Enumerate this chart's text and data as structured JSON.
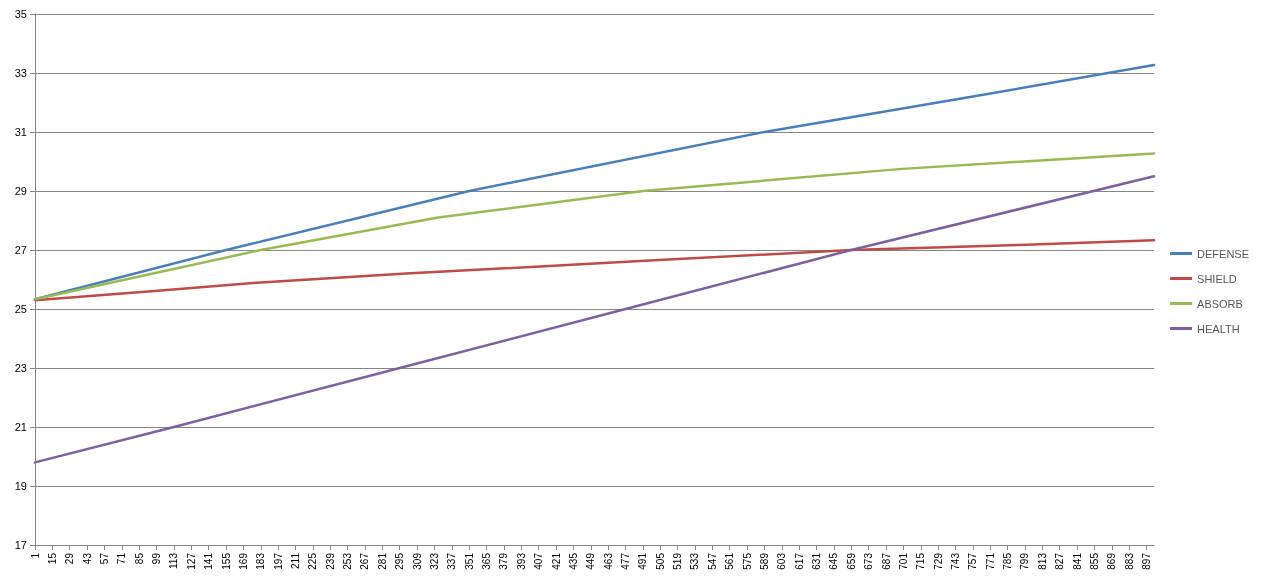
{
  "chart_data": {
    "type": "line",
    "xlim": [
      1,
      903
    ],
    "xticks": [
      1,
      15,
      29,
      43,
      57,
      71,
      85,
      99,
      113,
      127,
      141,
      155,
      169,
      183,
      197,
      211,
      225,
      239,
      253,
      267,
      281,
      295,
      309,
      323,
      337,
      351,
      365,
      379,
      393,
      407,
      421,
      435,
      449,
      463,
      477,
      491,
      505,
      519,
      533,
      547,
      561,
      575,
      589,
      603,
      617,
      631,
      645,
      659,
      673,
      687,
      701,
      715,
      729,
      743,
      757,
      771,
      785,
      799,
      813,
      827,
      841,
      855,
      869,
      883,
      897
    ],
    "ylim": [
      17,
      35
    ],
    "yticks": [
      17,
      19,
      21,
      23,
      25,
      27,
      29,
      31,
      33,
      35
    ],
    "grid": "y",
    "legend": "right",
    "marker": "none",
    "line_style": "solid",
    "series": [
      {
        "name": "DEFENSE",
        "color": "#4a7ebb",
        "x": [
          1,
          155,
          351,
          589,
          750,
          903
        ],
        "values": [
          25.33,
          27.0,
          29.0,
          31.0,
          32.15,
          33.27
        ]
      },
      {
        "name": "SHIELD",
        "color": "#be4b48",
        "x": [
          1,
          100,
          183,
          300,
          500,
          659,
          800,
          903
        ],
        "values": [
          25.3,
          25.62,
          25.9,
          26.2,
          26.65,
          27.0,
          27.18,
          27.33
        ]
      },
      {
        "name": "ABSORB",
        "color": "#98b954",
        "x": [
          1,
          183,
          326,
          491,
          700,
          903
        ],
        "values": [
          25.33,
          27.0,
          28.1,
          29.0,
          29.75,
          30.27
        ]
      },
      {
        "name": "HEALTH",
        "color": "#7d60a0",
        "x": [
          1,
          113,
          295,
          477,
          659,
          903
        ],
        "values": [
          19.8,
          21.0,
          23.0,
          25.0,
          27.0,
          29.5
        ]
      }
    ]
  }
}
